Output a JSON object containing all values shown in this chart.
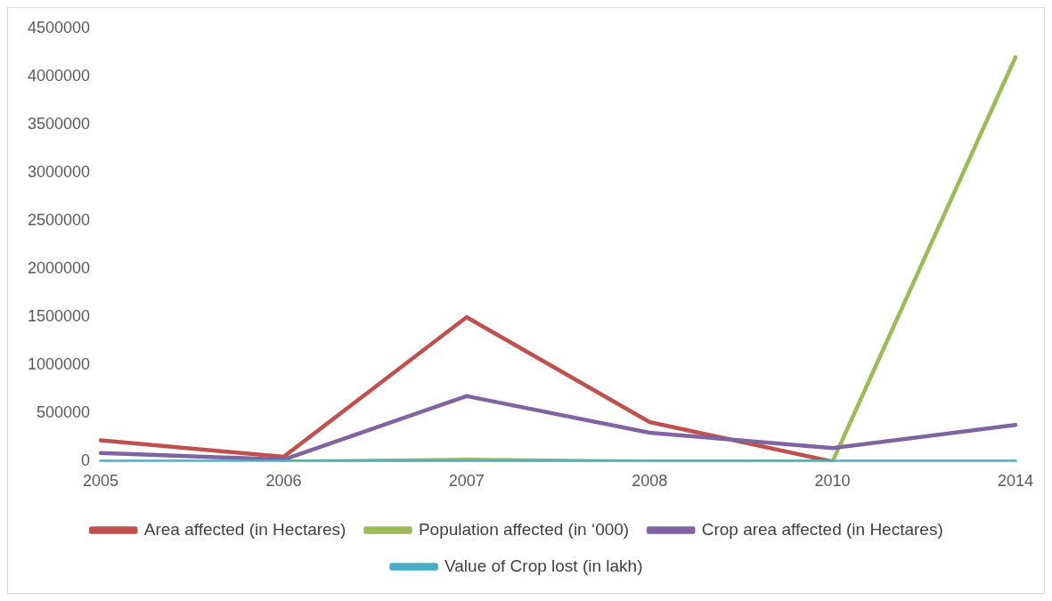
{
  "chart_data": {
    "type": "line",
    "categories": [
      "2005",
      "2006",
      "2007",
      "2008",
      "2010",
      "2014"
    ],
    "series": [
      {
        "name": "Area affected (in Hectares)",
        "color": "#c0504d",
        "values": [
          220000,
          50000,
          1500000,
          410000,
          0,
          null
        ]
      },
      {
        "name": "Population affected (in ‘000)",
        "color": "#9bbb59",
        "values": [
          null,
          0,
          20000,
          0,
          0,
          4200000
        ]
      },
      {
        "name": "Crop area affected (in Hectares)",
        "color": "#8064a2",
        "values": [
          90000,
          20000,
          680000,
          300000,
          140000,
          380000
        ]
      },
      {
        "name": "Value of Crop lost (in lakh)",
        "color": "#4bacc6",
        "values": [
          0,
          0,
          0,
          0,
          0,
          0
        ]
      }
    ],
    "ylim": [
      0,
      4500000
    ],
    "yticks": [
      0,
      500000,
      1000000,
      1500000,
      2000000,
      2500000,
      3000000,
      3500000,
      4000000,
      4500000
    ],
    "grid": false,
    "legend": "bottom",
    "marker": "none",
    "line_style": "solid"
  }
}
